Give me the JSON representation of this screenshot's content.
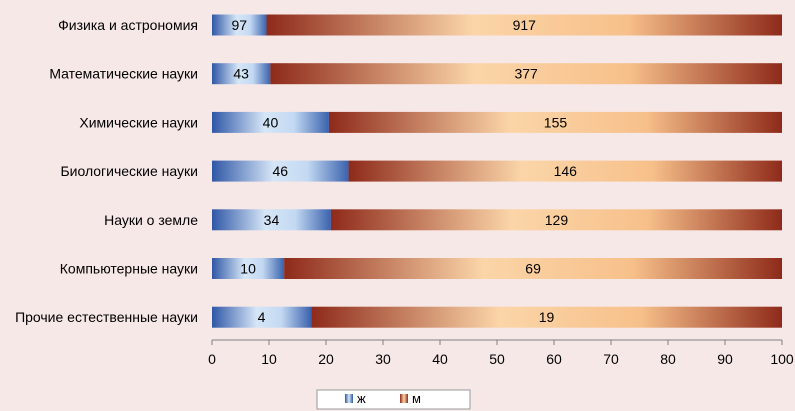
{
  "chart_data": {
    "type": "bar",
    "orientation": "horizontal",
    "stacked": "percent",
    "categories": [
      "Физика и астрономия",
      "Математические науки",
      "Химические науки",
      "Биологические науки",
      "Науки о земле",
      "Компьютерные науки",
      "Прочие естественные науки"
    ],
    "series": [
      {
        "name": "ж",
        "values": [
          97,
          43,
          40,
          46,
          34,
          10,
          4
        ]
      },
      {
        "name": "м",
        "values": [
          917,
          377,
          155,
          146,
          129,
          69,
          19
        ]
      }
    ],
    "xlim": [
      0,
      100
    ],
    "xticks": [
      "0",
      "10",
      "20",
      "30",
      "40",
      "50",
      "60",
      "70",
      "80",
      "90",
      "100"
    ],
    "grid": false,
    "legend": "bottom",
    "colors": {
      "ж_dark": "#2f57a6",
      "ж_light": "#d6e6f7",
      "м_dark": "#8e2a1a",
      "м_light": "#fbd5a8",
      "background": "#f7e8e8"
    }
  }
}
